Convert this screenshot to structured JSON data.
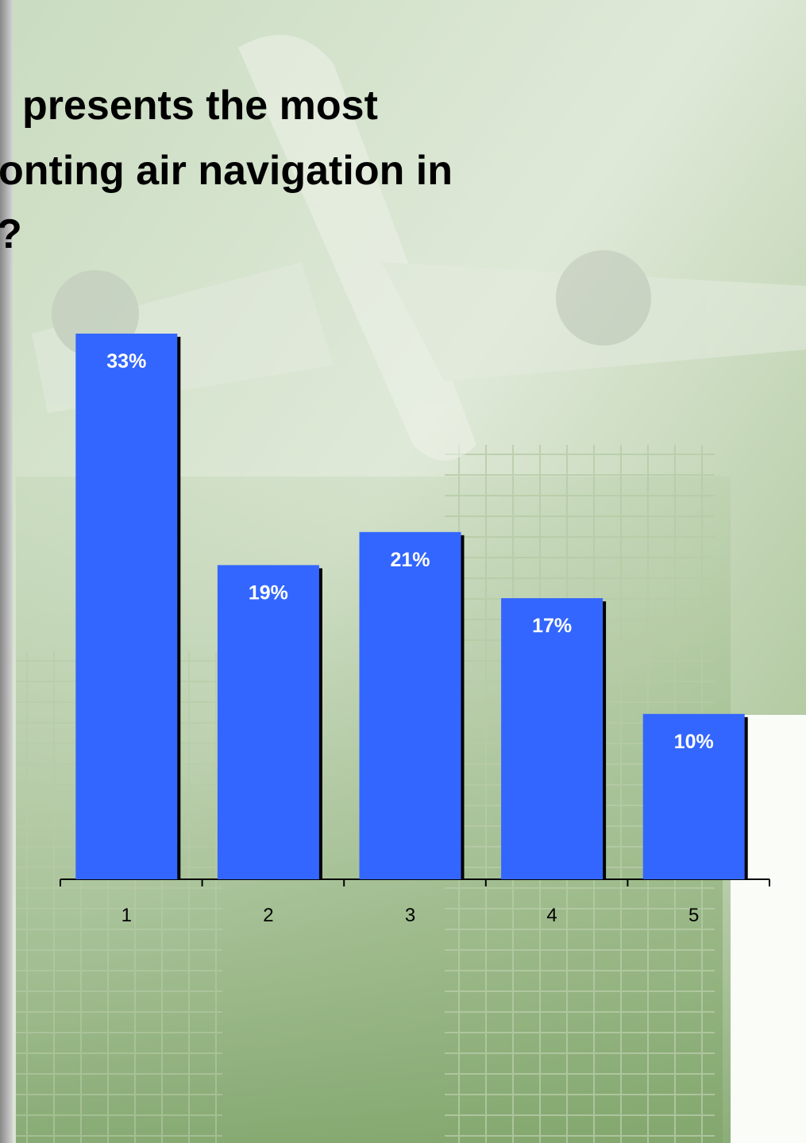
{
  "chart_data": {
    "type": "bar",
    "title": [
      "presents the most",
      "onting air navigation in",
      "?"
    ],
    "categories": [
      "1",
      "2",
      "3",
      "4",
      "5"
    ],
    "values": [
      33,
      19,
      21,
      17,
      10
    ],
    "value_labels": [
      "33%",
      "19%",
      "21%",
      "17%",
      "10%"
    ],
    "color": "#3366ff"
  }
}
